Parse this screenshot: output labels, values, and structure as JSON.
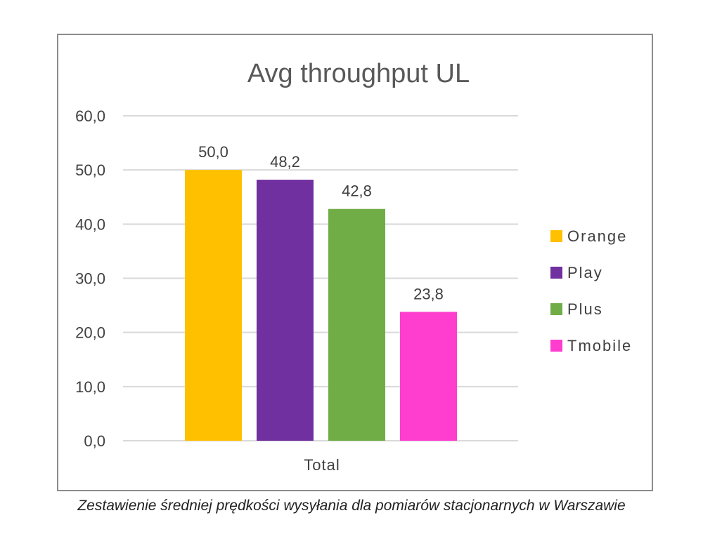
{
  "chart_data": {
    "type": "bar",
    "title": "Avg throughput UL",
    "categories": [
      "Total"
    ],
    "series": [
      {
        "name": "Orange",
        "values": [
          50.0
        ],
        "label": "50,0",
        "color": "#FFC000"
      },
      {
        "name": "Play",
        "values": [
          48.2
        ],
        "label": "48,2",
        "color": "#7030A0"
      },
      {
        "name": "Plus",
        "values": [
          42.8
        ],
        "label": "42,8",
        "color": "#70AD47"
      },
      {
        "name": "Tmobile",
        "values": [
          23.8
        ],
        "label": "23,8",
        "color": "#FF3DCE"
      }
    ],
    "ylim": [
      0,
      60
    ],
    "yticks": [
      {
        "value": 0,
        "label": "0,0"
      },
      {
        "value": 10,
        "label": "10,0"
      },
      {
        "value": 20,
        "label": "20,0"
      },
      {
        "value": 30,
        "label": "30,0"
      },
      {
        "value": 40,
        "label": "40,0"
      },
      {
        "value": 50,
        "label": "50,0"
      },
      {
        "value": 60,
        "label": "60,0"
      }
    ],
    "grid": true,
    "legend_position": "right"
  },
  "caption": "Zestawienie średniej prędkości wysyłania dla pomiarów stacjonarnych w Warszawie"
}
